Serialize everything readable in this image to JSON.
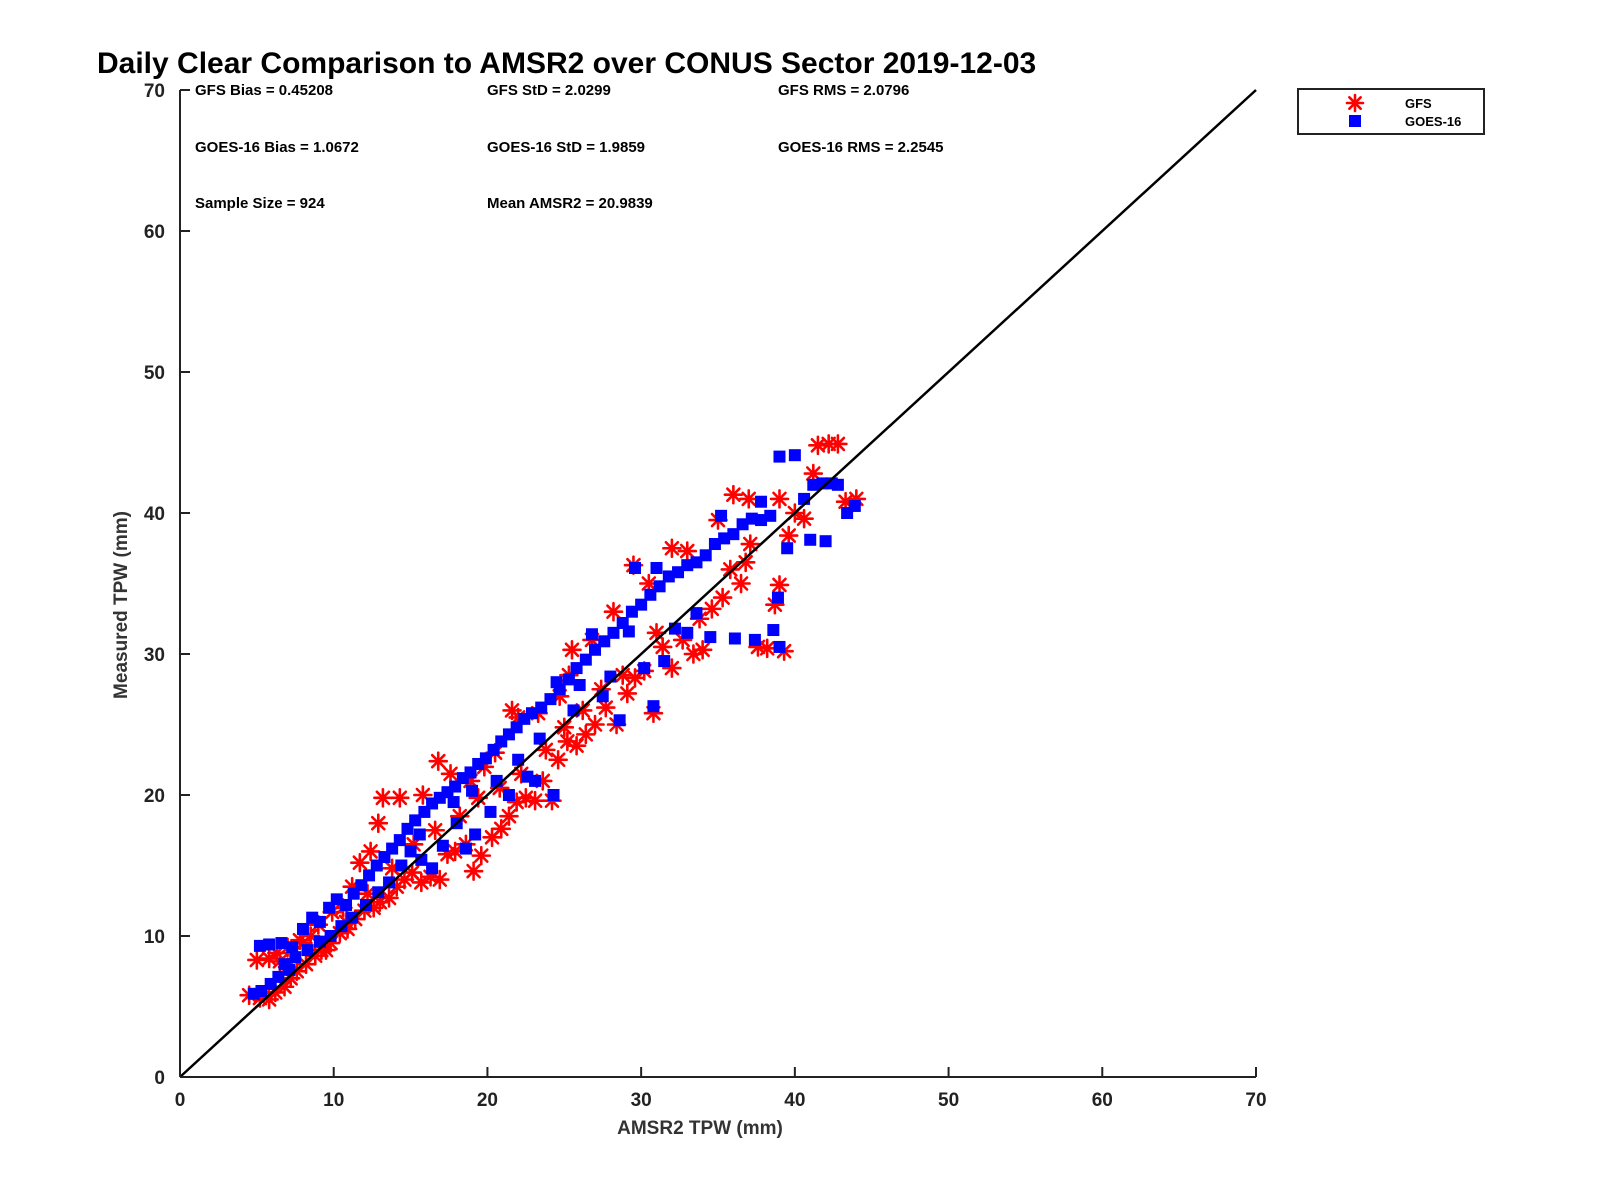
{
  "chart_data": {
    "type": "scatter",
    "title": "Daily Clear Comparison to AMSR2 over CONUS Sector 2019-12-03",
    "xlabel": "AMSR2 TPW (mm)",
    "ylabel": "Measured TPW (mm)",
    "xlim": [
      0,
      70
    ],
    "ylim": [
      0,
      70
    ],
    "xticks": [
      "0",
      "10",
      "20",
      "30",
      "40",
      "50",
      "60",
      "70"
    ],
    "yticks": [
      "0",
      "10",
      "20",
      "30",
      "40",
      "50",
      "60",
      "70"
    ],
    "grid": false,
    "legend_position": "outside-top-right",
    "reference_line": {
      "from": [
        0,
        0
      ],
      "to": [
        70,
        70
      ],
      "color": "#000000"
    },
    "stats": [
      "GFS Bias = 0.45208",
      "GFS StD = 2.0299",
      "GFS RMS = 2.0796",
      "GOES-16 Bias = 1.0672",
      "GOES-16 StD = 1.9859",
      "GOES-16 RMS = 2.2545",
      "Sample Size = 924",
      "Mean AMSR2 = 20.9839"
    ],
    "series": [
      {
        "name": "GFS",
        "marker": "asterisk",
        "color": "#ff0000",
        "points": [
          [
            4.5,
            5.8
          ],
          [
            5.2,
            5.6
          ],
          [
            5.8,
            5.5
          ],
          [
            6.2,
            6.0
          ],
          [
            6.8,
            6.4
          ],
          [
            7.2,
            7.0
          ],
          [
            5.0,
            8.3
          ],
          [
            5.8,
            8.4
          ],
          [
            6.5,
            8.2
          ],
          [
            7.0,
            7.8
          ],
          [
            7.6,
            7.5
          ],
          [
            8.2,
            8.0
          ],
          [
            8.8,
            8.6
          ],
          [
            9.2,
            9.0
          ],
          [
            9.8,
            9.5
          ],
          [
            10.4,
            10.2
          ],
          [
            10.9,
            10.5
          ],
          [
            11.4,
            11.2
          ],
          [
            12.0,
            11.8
          ],
          [
            12.6,
            12.0
          ],
          [
            13.0,
            12.4
          ],
          [
            13.6,
            12.7
          ],
          [
            14.1,
            13.5
          ],
          [
            14.6,
            14.0
          ],
          [
            15.1,
            14.5
          ],
          [
            15.7,
            13.8
          ],
          [
            16.3,
            14.2
          ],
          [
            16.9,
            14.0
          ],
          [
            17.4,
            15.8
          ],
          [
            17.9,
            16.0
          ],
          [
            18.6,
            16.5
          ],
          [
            19.1,
            14.6
          ],
          [
            19.6,
            15.7
          ],
          [
            20.3,
            17.0
          ],
          [
            20.9,
            17.6
          ],
          [
            21.4,
            18.5
          ],
          [
            21.9,
            19.5
          ],
          [
            22.5,
            19.8
          ],
          [
            23.1,
            19.6
          ],
          [
            23.6,
            21.0
          ],
          [
            24.2,
            19.6
          ],
          [
            24.6,
            22.5
          ],
          [
            25.2,
            23.8
          ],
          [
            25.8,
            23.5
          ],
          [
            26.4,
            24.3
          ],
          [
            27.0,
            25.0
          ],
          [
            27.7,
            26.2
          ],
          [
            28.4,
            25.0
          ],
          [
            29.1,
            27.2
          ],
          [
            29.6,
            28.3
          ],
          [
            30.2,
            28.8
          ],
          [
            30.8,
            25.8
          ],
          [
            31.4,
            30.5
          ],
          [
            32.0,
            29.0
          ],
          [
            32.7,
            31.0
          ],
          [
            33.4,
            30.0
          ],
          [
            34.0,
            30.3
          ],
          [
            34.6,
            33.2
          ],
          [
            35.3,
            34.0
          ],
          [
            35.8,
            36.0
          ],
          [
            36.5,
            35.0
          ],
          [
            37.1,
            37.8
          ],
          [
            37.6,
            30.5
          ],
          [
            38.2,
            30.4
          ],
          [
            38.7,
            33.5
          ],
          [
            39.0,
            34.9
          ],
          [
            39.3,
            30.2
          ],
          [
            39.6,
            38.4
          ],
          [
            40.0,
            40.0
          ],
          [
            40.6,
            39.6
          ],
          [
            41.2,
            42.8
          ],
          [
            41.5,
            44.8
          ],
          [
            42.2,
            44.9
          ],
          [
            42.8,
            44.9
          ],
          [
            43.3,
            40.8
          ],
          [
            44.0,
            41.0
          ],
          [
            39.0,
            41.0
          ],
          [
            37.0,
            41.0
          ],
          [
            36.0,
            41.3
          ],
          [
            35.0,
            39.5
          ],
          [
            33.0,
            37.3
          ],
          [
            32.0,
            37.5
          ],
          [
            29.5,
            36.3
          ],
          [
            30.5,
            35.0
          ],
          [
            28.2,
            33.0
          ],
          [
            26.8,
            31.0
          ],
          [
            25.5,
            30.3
          ],
          [
            25.3,
            28.5
          ],
          [
            24.7,
            27.0
          ],
          [
            23.3,
            25.8
          ],
          [
            22.0,
            25.5
          ],
          [
            21.6,
            26.0
          ],
          [
            20.5,
            23.0
          ],
          [
            19.8,
            22.0
          ],
          [
            18.9,
            21.0
          ],
          [
            17.6,
            21.5
          ],
          [
            16.8,
            22.4
          ],
          [
            15.8,
            20.0
          ],
          [
            14.3,
            19.8
          ],
          [
            13.2,
            19.8
          ],
          [
            12.9,
            18.0
          ],
          [
            12.4,
            16.0
          ],
          [
            11.7,
            15.2
          ],
          [
            11.2,
            13.5
          ],
          [
            10.6,
            12.0
          ],
          [
            9.9,
            11.7
          ],
          [
            9.0,
            10.8
          ],
          [
            8.5,
            10.0
          ],
          [
            7.8,
            9.7
          ],
          [
            7.0,
            9.2
          ],
          [
            6.3,
            8.8
          ],
          [
            8.0,
            9.5
          ],
          [
            9.5,
            9.0
          ],
          [
            10.8,
            11.0
          ],
          [
            12.2,
            13.0
          ],
          [
            13.8,
            14.8
          ],
          [
            15.2,
            16.5
          ],
          [
            16.6,
            17.5
          ],
          [
            18.2,
            18.5
          ],
          [
            19.4,
            19.8
          ],
          [
            20.8,
            20.5
          ],
          [
            22.2,
            21.5
          ],
          [
            23.8,
            23.2
          ],
          [
            25.0,
            24.8
          ],
          [
            26.2,
            26.0
          ],
          [
            27.4,
            27.5
          ],
          [
            28.8,
            28.5
          ],
          [
            31.0,
            31.5
          ],
          [
            33.8,
            32.5
          ],
          [
            36.8,
            36.5
          ]
        ]
      },
      {
        "name": "GOES-16",
        "marker": "square",
        "color": "#0000ff",
        "points": [
          [
            4.8,
            5.9
          ],
          [
            5.3,
            6.1
          ],
          [
            5.9,
            6.6
          ],
          [
            6.4,
            7.1
          ],
          [
            7.1,
            7.6
          ],
          [
            5.2,
            9.3
          ],
          [
            5.8,
            9.4
          ],
          [
            6.6,
            9.5
          ],
          [
            7.3,
            9.2
          ],
          [
            8.0,
            10.5
          ],
          [
            8.6,
            11.3
          ],
          [
            9.1,
            11.0
          ],
          [
            9.7,
            12.0
          ],
          [
            10.2,
            12.6
          ],
          [
            10.8,
            12.2
          ],
          [
            11.3,
            13.0
          ],
          [
            11.8,
            13.6
          ],
          [
            12.3,
            14.3
          ],
          [
            12.8,
            15.0
          ],
          [
            13.3,
            15.6
          ],
          [
            13.8,
            16.2
          ],
          [
            14.3,
            16.8
          ],
          [
            14.8,
            17.6
          ],
          [
            15.3,
            18.2
          ],
          [
            15.9,
            18.8
          ],
          [
            16.4,
            19.4
          ],
          [
            16.9,
            19.8
          ],
          [
            17.4,
            20.2
          ],
          [
            17.9,
            20.6
          ],
          [
            18.4,
            21.2
          ],
          [
            18.9,
            21.6
          ],
          [
            19.4,
            22.2
          ],
          [
            19.9,
            22.6
          ],
          [
            20.4,
            23.2
          ],
          [
            20.9,
            23.8
          ],
          [
            21.4,
            24.3
          ],
          [
            21.9,
            24.8
          ],
          [
            22.4,
            25.4
          ],
          [
            22.9,
            25.8
          ],
          [
            23.5,
            26.2
          ],
          [
            24.1,
            26.8
          ],
          [
            24.7,
            27.5
          ],
          [
            25.3,
            28.2
          ],
          [
            25.8,
            29.0
          ],
          [
            26.4,
            29.6
          ],
          [
            27.0,
            30.3
          ],
          [
            27.6,
            30.9
          ],
          [
            28.2,
            31.5
          ],
          [
            28.8,
            32.2
          ],
          [
            29.4,
            33.0
          ],
          [
            30.0,
            33.5
          ],
          [
            30.6,
            34.2
          ],
          [
            31.2,
            34.8
          ],
          [
            31.8,
            35.5
          ],
          [
            32.4,
            35.8
          ],
          [
            33.0,
            36.3
          ],
          [
            33.6,
            36.5
          ],
          [
            34.2,
            37.0
          ],
          [
            34.8,
            37.8
          ],
          [
            35.4,
            38.2
          ],
          [
            36.0,
            38.5
          ],
          [
            36.6,
            39.2
          ],
          [
            37.2,
            39.6
          ],
          [
            37.8,
            39.5
          ],
          [
            38.4,
            39.8
          ],
          [
            39.0,
            44.0
          ],
          [
            40.0,
            44.1
          ],
          [
            40.6,
            41.0
          ],
          [
            41.2,
            42.0
          ],
          [
            41.8,
            42.1
          ],
          [
            42.4,
            42.1
          ],
          [
            42.8,
            42.0
          ],
          [
            43.4,
            40.0
          ],
          [
            43.9,
            40.5
          ],
          [
            42.0,
            38.0
          ],
          [
            41.0,
            38.1
          ],
          [
            39.5,
            37.5
          ],
          [
            39.0,
            30.5
          ],
          [
            38.6,
            31.7
          ],
          [
            38.9,
            34.0
          ],
          [
            37.4,
            31.0
          ],
          [
            36.1,
            31.1
          ],
          [
            34.5,
            31.2
          ],
          [
            33.0,
            31.5
          ],
          [
            31.5,
            29.5
          ],
          [
            30.2,
            29.0
          ],
          [
            30.8,
            26.3
          ],
          [
            28.6,
            25.3
          ],
          [
            27.5,
            27.0
          ],
          [
            26.0,
            27.8
          ],
          [
            24.5,
            28.0
          ],
          [
            24.3,
            20.0
          ],
          [
            23.1,
            21.0
          ],
          [
            22.6,
            21.3
          ],
          [
            21.4,
            20.0
          ],
          [
            20.2,
            18.8
          ],
          [
            19.2,
            17.2
          ],
          [
            18.6,
            16.2
          ],
          [
            18.0,
            18.0
          ],
          [
            17.1,
            16.4
          ],
          [
            16.4,
            14.8
          ],
          [
            15.7,
            15.4
          ],
          [
            15.0,
            16.0
          ],
          [
            14.4,
            15.0
          ],
          [
            13.6,
            13.8
          ],
          [
            12.9,
            13.1
          ],
          [
            12.1,
            12.2
          ],
          [
            11.2,
            11.3
          ],
          [
            10.5,
            10.7
          ],
          [
            9.8,
            10.0
          ],
          [
            9.1,
            9.6
          ],
          [
            8.3,
            9.0
          ],
          [
            7.5,
            8.5
          ],
          [
            6.8,
            8.0
          ],
          [
            26.8,
            31.4
          ],
          [
            29.2,
            31.6
          ],
          [
            29.6,
            36.1
          ],
          [
            31.0,
            36.1
          ],
          [
            35.2,
            39.8
          ],
          [
            37.8,
            40.8
          ],
          [
            17.8,
            19.5
          ],
          [
            19.0,
            20.3
          ],
          [
            20.6,
            21.0
          ],
          [
            22.0,
            22.5
          ],
          [
            23.4,
            24.0
          ],
          [
            25.6,
            26.0
          ],
          [
            28.0,
            28.4
          ],
          [
            32.2,
            31.8
          ],
          [
            33.6,
            32.9
          ],
          [
            15.6,
            17.2
          ]
        ]
      }
    ]
  }
}
